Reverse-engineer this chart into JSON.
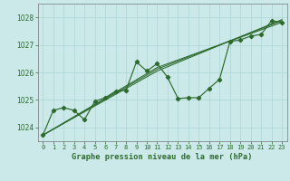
{
  "title": "Graphe pression niveau de la mer (hPa)",
  "x_labels": [
    "0",
    "1",
    "2",
    "3",
    "4",
    "5",
    "6",
    "7",
    "8",
    "9",
    "10",
    "11",
    "12",
    "13",
    "14",
    "15",
    "16",
    "17",
    "18",
    "19",
    "20",
    "21",
    "22",
    "23"
  ],
  "ylim": [
    1023.5,
    1028.5
  ],
  "xlim": [
    -0.5,
    23.5
  ],
  "yticks": [
    1024,
    1025,
    1026,
    1027,
    1028
  ],
  "line_color": "#2d6a2d",
  "bg_color": "#cce9e9",
  "grid_color": "#aad4d4",
  "series_main": [
    [
      0,
      1023.72
    ],
    [
      1,
      1024.62
    ],
    [
      2,
      1024.72
    ],
    [
      3,
      1024.62
    ],
    [
      4,
      1024.28
    ],
    [
      5,
      1024.95
    ],
    [
      6,
      1025.08
    ],
    [
      7,
      1025.32
    ],
    [
      8,
      1025.35
    ],
    [
      9,
      1026.38
    ],
    [
      10,
      1026.05
    ],
    [
      11,
      1026.32
    ],
    [
      12,
      1025.82
    ],
    [
      13,
      1025.05
    ],
    [
      14,
      1025.08
    ],
    [
      15,
      1025.08
    ],
    [
      16,
      1025.42
    ],
    [
      17,
      1025.75
    ],
    [
      18,
      1027.12
    ],
    [
      19,
      1027.18
    ],
    [
      20,
      1027.32
    ],
    [
      21,
      1027.38
    ],
    [
      22,
      1027.88
    ],
    [
      23,
      1027.82
    ]
  ],
  "series_trend1": [
    [
      0,
      1023.72
    ],
    [
      11,
      1026.05
    ],
    [
      23,
      1027.92
    ]
  ],
  "series_trend2": [
    [
      0,
      1023.72
    ],
    [
      11,
      1026.12
    ],
    [
      23,
      1027.88
    ]
  ],
  "series_trend3": [
    [
      0,
      1023.72
    ],
    [
      11,
      1026.18
    ],
    [
      23,
      1027.82
    ]
  ]
}
